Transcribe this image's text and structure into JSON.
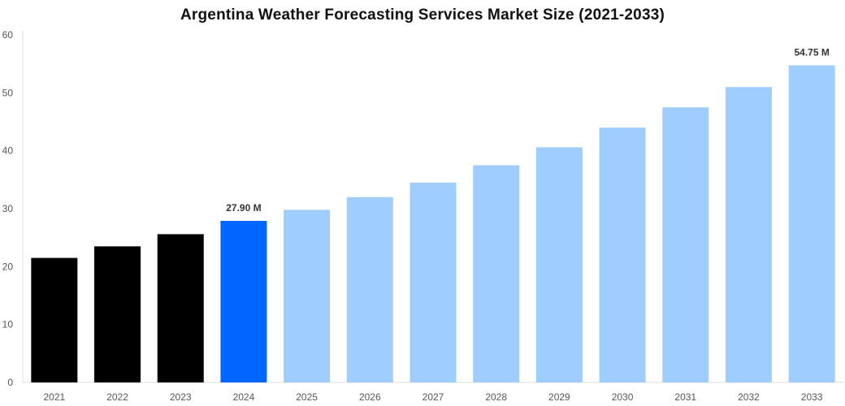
{
  "chart_data": {
    "type": "bar",
    "title": "Argentina Weather Forecasting Services Market Size (2021-2033)",
    "xlabel": "",
    "ylabel": "",
    "ylim": [
      0,
      60
    ],
    "yticks": [
      0,
      10,
      20,
      30,
      40,
      50,
      60
    ],
    "grid": false,
    "categories": [
      "2021",
      "2022",
      "2023",
      "2024",
      "2025",
      "2026",
      "2027",
      "2028",
      "2029",
      "2030",
      "2031",
      "2032",
      "2033"
    ],
    "values": [
      21.5,
      23.5,
      25.6,
      27.9,
      29.8,
      32.0,
      34.5,
      37.5,
      40.6,
      44.0,
      47.5,
      51.0,
      54.75
    ],
    "bar_colors": [
      "#000000",
      "#000000",
      "#000000",
      "#0066ff",
      "#a0cdff",
      "#a0cdff",
      "#a0cdff",
      "#a0cdff",
      "#a0cdff",
      "#a0cdff",
      "#a0cdff",
      "#a0cdff",
      "#a0cdff"
    ],
    "data_labels": {
      "3": "27.90 M",
      "12": "54.75 M"
    }
  }
}
